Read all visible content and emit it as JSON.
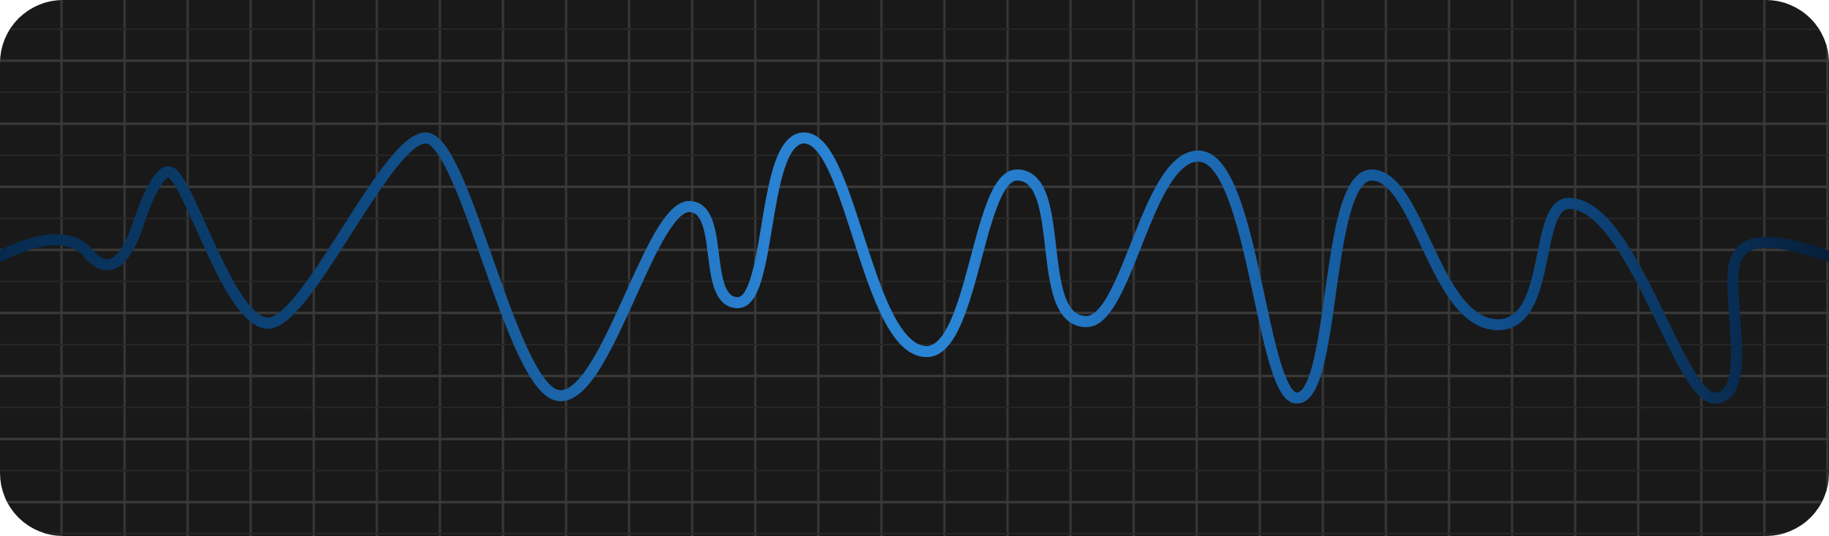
{
  "display": {
    "background_color": "#191919",
    "grid_color": "#3a3a3a",
    "grid": true,
    "wave_gradient": [
      "#062a4d",
      "#0e4a82",
      "#1a6cb4",
      "#2a82d2",
      "#2177c4",
      "#1a66ae",
      "#114d87",
      "#0a3764",
      "#072a4d"
    ],
    "wave_shape": "sine-like signal trace"
  }
}
